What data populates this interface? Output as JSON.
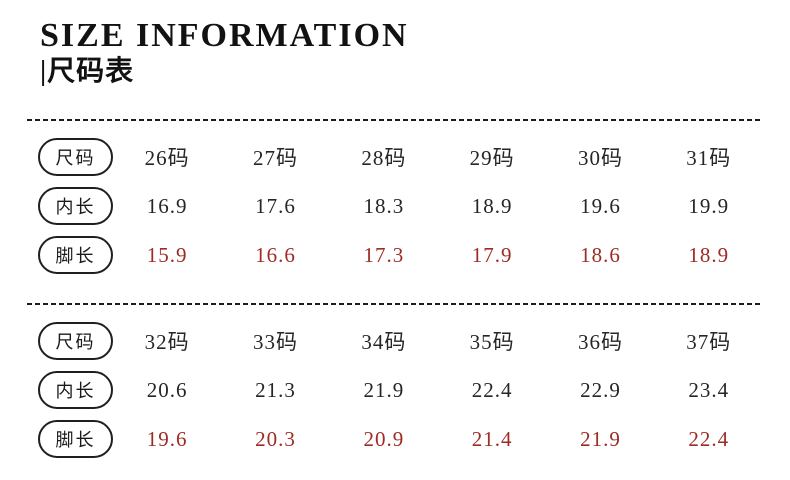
{
  "header": {
    "title": "SIZE INFORMATION",
    "subtitle": "|尺码表"
  },
  "colors": {
    "foot_length_red": "#9e2b24",
    "text_dark": "#222222",
    "divider_dark": "#1c1c1c"
  },
  "tables": [
    {
      "rows": [
        {
          "label": "尺码",
          "red": false,
          "values": [
            "26码",
            "27码",
            "28码",
            "29码",
            "30码",
            "31码"
          ]
        },
        {
          "label": "内长",
          "red": false,
          "values": [
            "16.9",
            "17.6",
            "18.3",
            "18.9",
            "19.6",
            "19.9"
          ]
        },
        {
          "label": "脚长",
          "red": true,
          "values": [
            "15.9",
            "16.6",
            "17.3",
            "17.9",
            "18.6",
            "18.9"
          ]
        }
      ]
    },
    {
      "rows": [
        {
          "label": "尺码",
          "red": false,
          "values": [
            "32码",
            "33码",
            "34码",
            "35码",
            "36码",
            "37码"
          ]
        },
        {
          "label": "内长",
          "red": false,
          "values": [
            "20.6",
            "21.3",
            "21.9",
            "22.4",
            "22.9",
            "23.4"
          ]
        },
        {
          "label": "脚长",
          "red": true,
          "values": [
            "19.6",
            "20.3",
            "20.9",
            "21.4",
            "21.9",
            "22.4"
          ]
        }
      ]
    }
  ]
}
